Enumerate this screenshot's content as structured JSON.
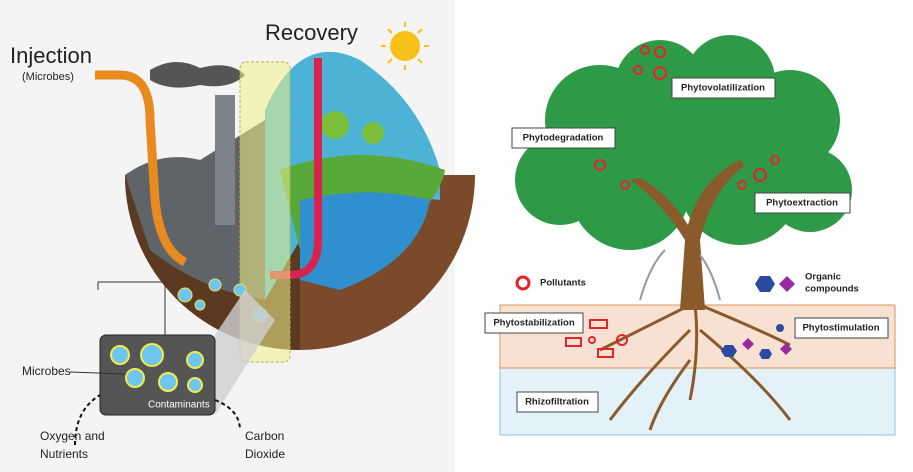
{
  "left": {
    "injection": "Injection",
    "injection_sub": "(Microbes)",
    "recovery": "Recovery",
    "microbes": "Microbes",
    "contaminants": "Contaminants",
    "oxygen": [
      "Oxygen and",
      "Nutrients"
    ],
    "carbon": [
      "Carbon",
      "Dioxide"
    ]
  },
  "right": {
    "phytovolatilization": "Phytovolatilization",
    "phytodegradation": "Phytodegradation",
    "phytoextraction": "Phytoextraction",
    "pollutants": "Pollutants",
    "organic": [
      "Organic",
      "compounds"
    ],
    "phytostabilization": "Phytostabilization",
    "phytostimulation": "Phytostimulation",
    "rhizofiltration": "Rhizofiltration"
  }
}
